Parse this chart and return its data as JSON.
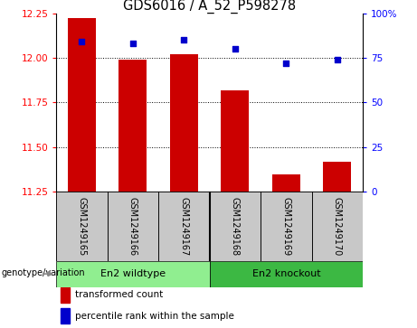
{
  "title": "GDS6016 / A_52_P598278",
  "samples": [
    "GSM1249165",
    "GSM1249166",
    "GSM1249167",
    "GSM1249168",
    "GSM1249169",
    "GSM1249170"
  ],
  "transformed_counts": [
    12.22,
    11.99,
    12.02,
    11.82,
    11.35,
    11.42
  ],
  "percentile_ranks": [
    84,
    83,
    85,
    80,
    72,
    74
  ],
  "groups": [
    {
      "label": "En2 wildtype",
      "indices": [
        0,
        1,
        2
      ]
    },
    {
      "label": "En2 knockout",
      "indices": [
        3,
        4,
        5
      ]
    }
  ],
  "ylim_left": [
    11.25,
    12.25
  ],
  "ylim_right": [
    0,
    100
  ],
  "yticks_left": [
    11.25,
    11.5,
    11.75,
    12.0,
    12.25
  ],
  "yticks_right": [
    0,
    25,
    50,
    75,
    100
  ],
  "bar_color": "#CC0000",
  "dot_color": "#0000CC",
  "bar_bottom": 11.25,
  "legend_label_bar": "transformed count",
  "legend_label_dot": "percentile rank within the sample",
  "xlabel_area": "genotype/variation",
  "group_bg_color": "#c8c8c8",
  "wildtype_bg": "#90EE90",
  "knockout_bg": "#3CB843",
  "bar_width": 0.55
}
